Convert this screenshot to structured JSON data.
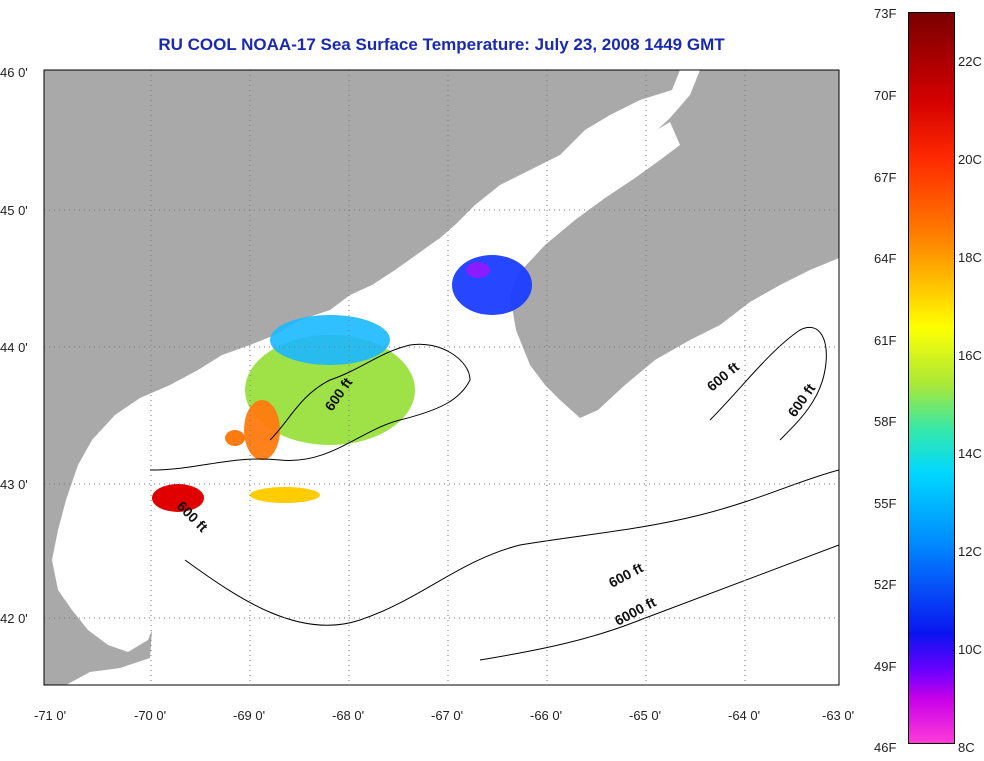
{
  "title": "RU COOL  NOAA-17  Sea Surface Temperature:  July 23, 2008 1449 GMT",
  "map": {
    "lat_ticks": [
      "46 0'",
      "45 0'",
      "44 0'",
      "43 0'",
      "42 0'"
    ],
    "lon_ticks": [
      "-71 0'",
      "-70 0'",
      "-69 0'",
      "-68 0'",
      "-67 0'",
      "-66 0'",
      "-65 0'",
      "-64 0'",
      "-63 0'"
    ],
    "contour_labels": [
      "600 ft",
      "600 ft",
      "600 ft",
      "600 ft",
      "600 ft",
      "6000 ft"
    ],
    "colors": {
      "land": "#a9a9a9",
      "water": "#ffffff",
      "contour": "#000000",
      "grid": "#777777",
      "title": "#1a2ab0"
    }
  },
  "colorbar": {
    "fahrenheit": [
      "73F",
      "70F",
      "67F",
      "64F",
      "61F",
      "58F",
      "55F",
      "52F",
      "49F",
      "46F"
    ],
    "celsius": [
      "22C",
      "20C",
      "18C",
      "16C",
      "14C",
      "12C",
      "10C",
      "8C"
    ]
  }
}
